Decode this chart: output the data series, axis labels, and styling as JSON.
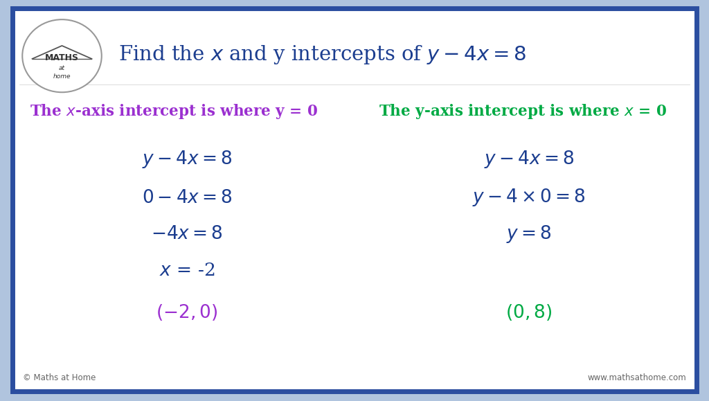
{
  "title": "Find the $x$ and y intercepts of $y - 4x = 8$",
  "title_color": "#1b3d8f",
  "bg_color": "#ffffff",
  "outer_bg": "#b0c4de",
  "border_color": "#2b4ea0",
  "left_header": "The $x$-axis intercept is where y = 0",
  "right_header": "The y-axis intercept is where $x$ = 0",
  "header_left_color": "#9b30d0",
  "header_right_color": "#00aa44",
  "left_steps": [
    "$y - 4x = 8$",
    "$0 - 4x = 8$",
    "$-4x = 8$",
    "$x$ = -2",
    "$(-2, 0)$"
  ],
  "right_steps": [
    "$y - 4x = 8$",
    "$y -4 \\times 0 = 8$",
    "$y = 8$",
    "",
    "$(0, 8)$"
  ],
  "steps_color": "#1b3d8f",
  "answer_color_left": "#9b30d0",
  "answer_color_right": "#00aa44",
  "footer_left": "© Maths at Home",
  "footer_right": "www.mathsathome.com",
  "footer_color": "#666666",
  "logo_text1": "MATHS",
  "logo_text2": "at",
  "logo_text3": "home"
}
